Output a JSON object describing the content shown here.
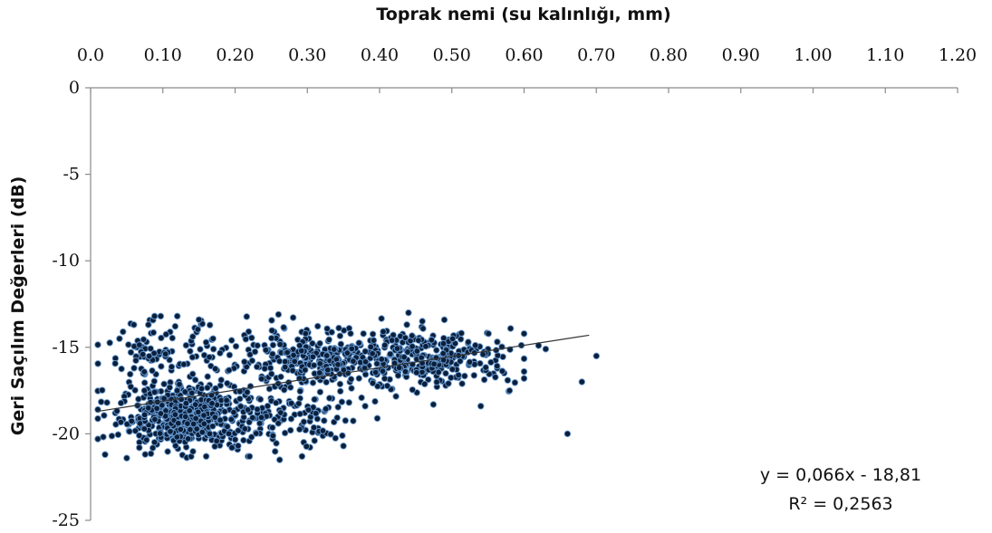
{
  "chart_data": {
    "type": "scatter",
    "xlabel": "Toprak nemi (su kalınlığı, mm)",
    "ylabel": "Geri Saçılım Değerleri (dB)",
    "xlim": [
      0,
      1.2
    ],
    "ylim": [
      -25,
      0
    ],
    "x_axis_position": "top",
    "x_ticks": [
      0,
      0.1,
      0.2,
      0.3,
      0.4,
      0.5,
      0.6,
      0.7,
      0.8,
      0.9,
      1.0,
      1.1,
      1.2
    ],
    "x_tick_labels": [
      "0.0",
      "0.10",
      "0.20",
      "0.30",
      "0.40",
      "0.50",
      "0.60",
      "0.70",
      "0.80",
      "0.90",
      "1.00",
      "1.10",
      "1.20"
    ],
    "y_ticks": [
      0,
      -5,
      -10,
      -15,
      -20,
      -25
    ],
    "y_tick_labels": [
      "0",
      "-5",
      "-10",
      "-15",
      "-20",
      "-25"
    ],
    "grid": false,
    "marker_color": "#0b1f3a",
    "marker_edge_color": "#6a9cd3",
    "trendline": {
      "slope": 0.066,
      "intercept": -18.81,
      "x_range": [
        0.01,
        0.69
      ],
      "color": "#333333"
    },
    "annotations": [
      "y = 0,066x - 18,81",
      "R² = 0,2563"
    ],
    "clusters": [
      {
        "label": "dense-low",
        "x_mean": 0.13,
        "x_sd": 0.045,
        "y_mean": -19.0,
        "y_sd": 0.9,
        "count": 520
      },
      {
        "label": "mid-high",
        "x_mean": 0.32,
        "x_sd": 0.07,
        "y_mean": -15.8,
        "y_sd": 0.9,
        "count": 340
      },
      {
        "label": "right-high",
        "x_mean": 0.47,
        "x_sd": 0.06,
        "y_mean": -15.6,
        "y_sd": 0.8,
        "count": 300
      },
      {
        "label": "left-high",
        "x_mean": 0.1,
        "x_sd": 0.04,
        "y_mean": -15.5,
        "y_sd": 1.0,
        "count": 110
      },
      {
        "label": "mid-low",
        "x_mean": 0.27,
        "x_sd": 0.06,
        "y_mean": -19.3,
        "y_sd": 1.0,
        "count": 120
      }
    ],
    "points": [
      {
        "x": 0.02,
        "y": -21.2
      },
      {
        "x": 0.01,
        "y": -20.3
      },
      {
        "x": 0.01,
        "y": -18.6
      },
      {
        "x": 0.05,
        "y": -21.4
      },
      {
        "x": 0.06,
        "y": -13.7
      },
      {
        "x": 0.08,
        "y": -13.7
      },
      {
        "x": 0.04,
        "y": -14.5
      },
      {
        "x": 0.12,
        "y": -13.2
      },
      {
        "x": 0.15,
        "y": -13.4
      },
      {
        "x": 0.26,
        "y": -13.1
      },
      {
        "x": 0.35,
        "y": -20.7
      },
      {
        "x": 0.44,
        "y": -13.0
      },
      {
        "x": 0.54,
        "y": -18.4
      },
      {
        "x": 0.62,
        "y": -14.9
      },
      {
        "x": 0.63,
        "y": -15.1
      },
      {
        "x": 0.66,
        "y": -20.0
      },
      {
        "x": 0.68,
        "y": -17.0
      },
      {
        "x": 0.7,
        "y": -15.5
      },
      {
        "x": 0.6,
        "y": -16.8
      },
      {
        "x": 0.58,
        "y": -17.5
      },
      {
        "x": 0.22,
        "y": -21.3
      },
      {
        "x": 0.16,
        "y": -21.3
      },
      {
        "x": 0.31,
        "y": -20.4
      },
      {
        "x": 0.38,
        "y": -18.4
      }
    ]
  }
}
